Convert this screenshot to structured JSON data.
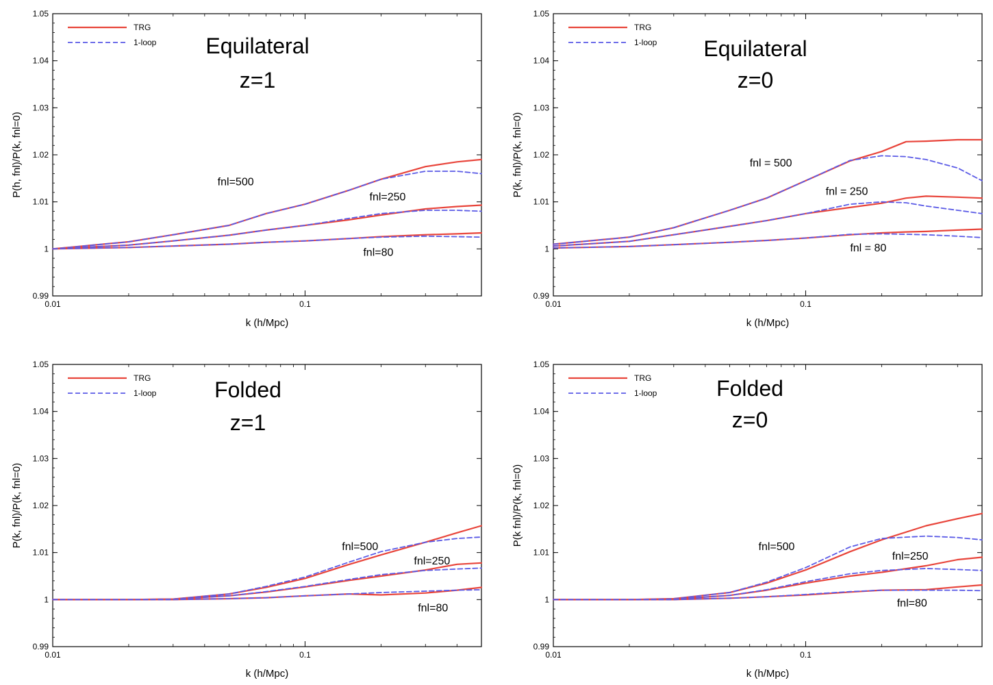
{
  "chart_data": [
    {
      "type": "line",
      "panel": "top-left",
      "title_lines": [
        "Equilateral",
        "z=1"
      ],
      "xlabel": "k (h/Mpc)",
      "ylabel": "P(h, fnl)/P(k, fnl=0)",
      "xscale": "log",
      "xlim": [
        0.01,
        0.5
      ],
      "ylim": [
        0.99,
        1.05
      ],
      "xticks": [
        0.01,
        0.1
      ],
      "xticklabels": [
        "0.01",
        "0.1"
      ],
      "yticks": [
        0.99,
        1,
        1.01,
        1.02,
        1.03,
        1.04,
        1.05
      ],
      "yticklabels": [
        "0.99",
        "1",
        "1.01",
        "1.02",
        "1.03",
        "1.04",
        "1.05"
      ],
      "legend": {
        "position": "top-left",
        "entries": [
          {
            "label": "TRG",
            "color": "#e8443a",
            "style": "solid"
          },
          {
            "label": "1-loop",
            "color": "#5a5ae6",
            "style": "dashed"
          }
        ]
      },
      "x": [
        0.01,
        0.02,
        0.03,
        0.05,
        0.07,
        0.1,
        0.15,
        0.2,
        0.3,
        0.4,
        0.5
      ],
      "series": [
        {
          "name": "TRG",
          "group": "fnl=500",
          "values": [
            1.0,
            1.0015,
            1.003,
            1.005,
            1.0075,
            1.0095,
            1.0125,
            1.0148,
            1.0175,
            1.0185,
            1.019
          ]
        },
        {
          "name": "1-loop",
          "group": "fnl=500",
          "values": [
            1.0,
            1.0015,
            1.003,
            1.005,
            1.0075,
            1.0095,
            1.0125,
            1.0148,
            1.0165,
            1.0165,
            1.016
          ]
        },
        {
          "name": "TRG",
          "group": "fnl=250",
          "values": [
            1.0,
            1.0008,
            1.0017,
            1.0029,
            1.004,
            1.005,
            1.0062,
            1.0072,
            1.0085,
            1.009,
            1.0093
          ]
        },
        {
          "name": "1-loop",
          "group": "fnl=250",
          "values": [
            1.0,
            1.0008,
            1.0017,
            1.0029,
            1.004,
            1.005,
            1.0065,
            1.0075,
            1.0082,
            1.0082,
            1.008
          ]
        },
        {
          "name": "TRG",
          "group": "fnl=80",
          "values": [
            1.0,
            1.0003,
            1.0006,
            1.001,
            1.0014,
            1.0017,
            1.0022,
            1.0026,
            1.003,
            1.0032,
            1.0034
          ]
        },
        {
          "name": "1-loop",
          "group": "fnl=80",
          "values": [
            1.0,
            1.0003,
            1.0006,
            1.001,
            1.0014,
            1.0017,
            1.0022,
            1.0025,
            1.0027,
            1.0026,
            1.0025
          ]
        }
      ],
      "annotations": [
        {
          "text": "fnl=500",
          "x": 0.045,
          "y": 1.0135
        },
        {
          "text": "fnl=250",
          "x": 0.18,
          "y": 1.0103
        },
        {
          "text": "fnl=80",
          "x": 0.17,
          "y": 0.9985
        }
      ]
    },
    {
      "type": "line",
      "panel": "top-right",
      "title_lines": [
        "Equilateral",
        "z=0"
      ],
      "xlabel": "k (h/Mpc)",
      "ylabel": "P(k, fnl)/P(k, fnl=0)",
      "xscale": "log",
      "xlim": [
        0.01,
        0.5
      ],
      "ylim": [
        0.99,
        1.05
      ],
      "xticks": [
        0.01,
        0.1
      ],
      "xticklabels": [
        "0.01",
        "0.1"
      ],
      "yticks": [
        0.99,
        1,
        1.01,
        1.02,
        1.03,
        1.04,
        1.05
      ],
      "yticklabels": [
        "0.99",
        "1",
        "1.01",
        "1.02",
        "1.03",
        "1.04",
        "1.05"
      ],
      "legend": {
        "position": "top-left",
        "entries": [
          {
            "label": "TRG",
            "color": "#e8443a",
            "style": "solid"
          },
          {
            "label": "1-loop",
            "color": "#5a5ae6",
            "style": "dashed"
          }
        ]
      },
      "x": [
        0.01,
        0.02,
        0.03,
        0.05,
        0.07,
        0.1,
        0.15,
        0.2,
        0.25,
        0.3,
        0.4,
        0.5
      ],
      "series": [
        {
          "name": "TRG",
          "group": "fnl = 500",
          "values": [
            1.001,
            1.0025,
            1.0045,
            1.0082,
            1.0108,
            1.0145,
            1.0187,
            1.0207,
            1.0228,
            1.0229,
            1.0232,
            1.0232
          ]
        },
        {
          "name": "1-loop",
          "group": "fnl = 500",
          "values": [
            1.001,
            1.0025,
            1.0045,
            1.0082,
            1.0108,
            1.0145,
            1.0188,
            1.0198,
            1.0196,
            1.019,
            1.0172,
            1.0145
          ]
        },
        {
          "name": "TRG",
          "group": "fnl = 250",
          "values": [
            1.0006,
            1.0016,
            1.003,
            1.0048,
            1.006,
            1.0075,
            1.0088,
            1.0097,
            1.0108,
            1.0112,
            1.011,
            1.0108
          ]
        },
        {
          "name": "1-loop",
          "group": "fnl = 250",
          "values": [
            1.0006,
            1.0016,
            1.003,
            1.0048,
            1.006,
            1.0075,
            1.0095,
            1.01,
            1.0098,
            1.0091,
            1.0082,
            1.0075
          ]
        },
        {
          "name": "TRG",
          "group": "fnl = 80",
          "values": [
            1.0002,
            1.0005,
            1.0009,
            1.0014,
            1.0018,
            1.0023,
            1.003,
            1.0034,
            1.0036,
            1.0037,
            1.004,
            1.0042
          ]
        },
        {
          "name": "1-loop",
          "group": "fnl = 80",
          "values": [
            1.0002,
            1.0005,
            1.0009,
            1.0014,
            1.0018,
            1.0023,
            1.0031,
            1.0032,
            1.0031,
            1.003,
            1.0027,
            1.0024
          ]
        }
      ],
      "annotations": [
        {
          "text": "fnl = 500",
          "x": 0.06,
          "y": 1.0175
        },
        {
          "text": "fnl = 250",
          "x": 0.12,
          "y": 1.0115
        },
        {
          "text": "fnl = 80",
          "x": 0.15,
          "y": 0.9995
        }
      ]
    },
    {
      "type": "line",
      "panel": "bottom-left",
      "title_lines": [
        "Folded",
        "z=1"
      ],
      "xlabel": "k (h/Mpc)",
      "ylabel": "P(k, fnl)/P(k, fnl=0)",
      "xscale": "log",
      "xlim": [
        0.01,
        0.5
      ],
      "ylim": [
        0.99,
        1.05
      ],
      "xticks": [
        0.01,
        0.1
      ],
      "xticklabels": [
        "0.01",
        "0.1"
      ],
      "yticks": [
        0.99,
        1,
        1.01,
        1.02,
        1.03,
        1.04,
        1.05
      ],
      "yticklabels": [
        "0.99",
        "1",
        "1.01",
        "1.02",
        "1.03",
        "1.04",
        "1.05"
      ],
      "legend": {
        "position": "top-left",
        "entries": [
          {
            "label": "TRG",
            "color": "#e8443a",
            "style": "solid"
          },
          {
            "label": "1-loop",
            "color": "#5a5ae6",
            "style": "dashed"
          }
        ]
      },
      "x": [
        0.01,
        0.02,
        0.03,
        0.05,
        0.07,
        0.1,
        0.15,
        0.2,
        0.3,
        0.4,
        0.5
      ],
      "series": [
        {
          "name": "TRG",
          "group": "fnl=500",
          "values": [
            1.0,
            1.0,
            1.0001,
            1.0012,
            1.0026,
            1.0045,
            1.0075,
            1.0095,
            1.0122,
            1.0142,
            1.0157
          ]
        },
        {
          "name": "1-loop",
          "group": "fnl=500",
          "values": [
            1.0,
            1.0,
            1.0001,
            1.0012,
            1.0028,
            1.0048,
            1.008,
            1.0102,
            1.0122,
            1.013,
            1.0133
          ]
        },
        {
          "name": "TRG",
          "group": "fnl=250",
          "values": [
            1.0,
            1.0,
            1.0001,
            1.0008,
            1.0016,
            1.0027,
            1.0041,
            1.005,
            1.0063,
            1.0075,
            1.0078
          ]
        },
        {
          "name": "1-loop",
          "group": "fnl=250",
          "values": [
            1.0,
            1.0,
            1.0001,
            1.0008,
            1.0017,
            1.0028,
            1.0043,
            1.0053,
            1.0062,
            1.0065,
            1.0067
          ]
        },
        {
          "name": "TRG",
          "group": "fnl=80",
          "values": [
            1.0,
            1.0,
            1.0,
            1.0002,
            1.0004,
            1.0008,
            1.0012,
            1.001,
            1.0014,
            1.002,
            1.0026
          ]
        },
        {
          "name": "1-loop",
          "group": "fnl=80",
          "values": [
            1.0,
            1.0,
            1.0,
            1.0002,
            1.0004,
            1.0008,
            1.0012,
            1.0015,
            1.0018,
            1.002,
            1.0021
          ]
        }
      ],
      "annotations": [
        {
          "text": "fnl=500",
          "x": 0.14,
          "y": 1.0105
        },
        {
          "text": "fnl=250",
          "x": 0.27,
          "y": 1.0075
        },
        {
          "text": "fnl=80",
          "x": 0.28,
          "y": 0.9975
        }
      ]
    },
    {
      "type": "line",
      "panel": "bottom-right",
      "title_lines": [
        "Folded",
        "z=0"
      ],
      "xlabel": "k (h/Mpc)",
      "ylabel": "P(k fnl)/P(k, fnl=0)",
      "xscale": "log",
      "xlim": [
        0.01,
        0.5
      ],
      "ylim": [
        0.99,
        1.05
      ],
      "xticks": [
        0.01,
        0.1
      ],
      "xticklabels": [
        "0.01",
        "0.1"
      ],
      "yticks": [
        0.99,
        1,
        1.01,
        1.02,
        1.03,
        1.04,
        1.05
      ],
      "yticklabels": [
        "0.99",
        "1",
        "1.01",
        "1.02",
        "1.03",
        "1.04",
        "1.05"
      ],
      "legend": {
        "position": "top-left",
        "entries": [
          {
            "label": "TRG",
            "color": "#e8443a",
            "style": "solid"
          },
          {
            "label": "1-loop",
            "color": "#5a5ae6",
            "style": "dashed"
          }
        ]
      },
      "x": [
        0.01,
        0.02,
        0.03,
        0.05,
        0.07,
        0.1,
        0.15,
        0.2,
        0.3,
        0.4,
        0.5
      ],
      "series": [
        {
          "name": "TRG",
          "group": "fnl=500",
          "values": [
            1.0,
            1.0,
            1.0002,
            1.0015,
            1.0035,
            1.0063,
            1.0102,
            1.0127,
            1.0157,
            1.0172,
            1.0183
          ]
        },
        {
          "name": "1-loop",
          "group": "fnl=500",
          "values": [
            1.0,
            1.0,
            1.0002,
            1.0015,
            1.0037,
            1.0068,
            1.0112,
            1.013,
            1.0135,
            1.0132,
            1.0127
          ]
        },
        {
          "name": "TRG",
          "group": "fnl=250",
          "values": [
            1.0,
            1.0,
            1.0001,
            1.0009,
            1.002,
            1.0035,
            1.005,
            1.0058,
            1.0072,
            1.0085,
            1.009
          ]
        },
        {
          "name": "1-loop",
          "group": "fnl=250",
          "values": [
            1.0,
            1.0,
            1.0001,
            1.0009,
            1.0021,
            1.0038,
            1.0055,
            1.0062,
            1.0066,
            1.0064,
            1.0062
          ]
        },
        {
          "name": "TRG",
          "group": "fnl=80",
          "values": [
            1.0,
            1.0,
            1.0,
            1.0003,
            1.0006,
            1.001,
            1.0016,
            1.002,
            1.0021,
            1.0027,
            1.0031
          ]
        },
        {
          "name": "1-loop",
          "group": "fnl=80",
          "values": [
            1.0,
            1.0,
            1.0,
            1.0003,
            1.0006,
            1.0011,
            1.0017,
            1.002,
            1.002,
            1.002,
            1.0019
          ]
        }
      ],
      "annotations": [
        {
          "text": "fnl=500",
          "x": 0.065,
          "y": 1.0105
        },
        {
          "text": "fnl=250",
          "x": 0.22,
          "y": 1.0085
        },
        {
          "text": "fnl=80",
          "x": 0.23,
          "y": 0.9985
        }
      ]
    }
  ]
}
